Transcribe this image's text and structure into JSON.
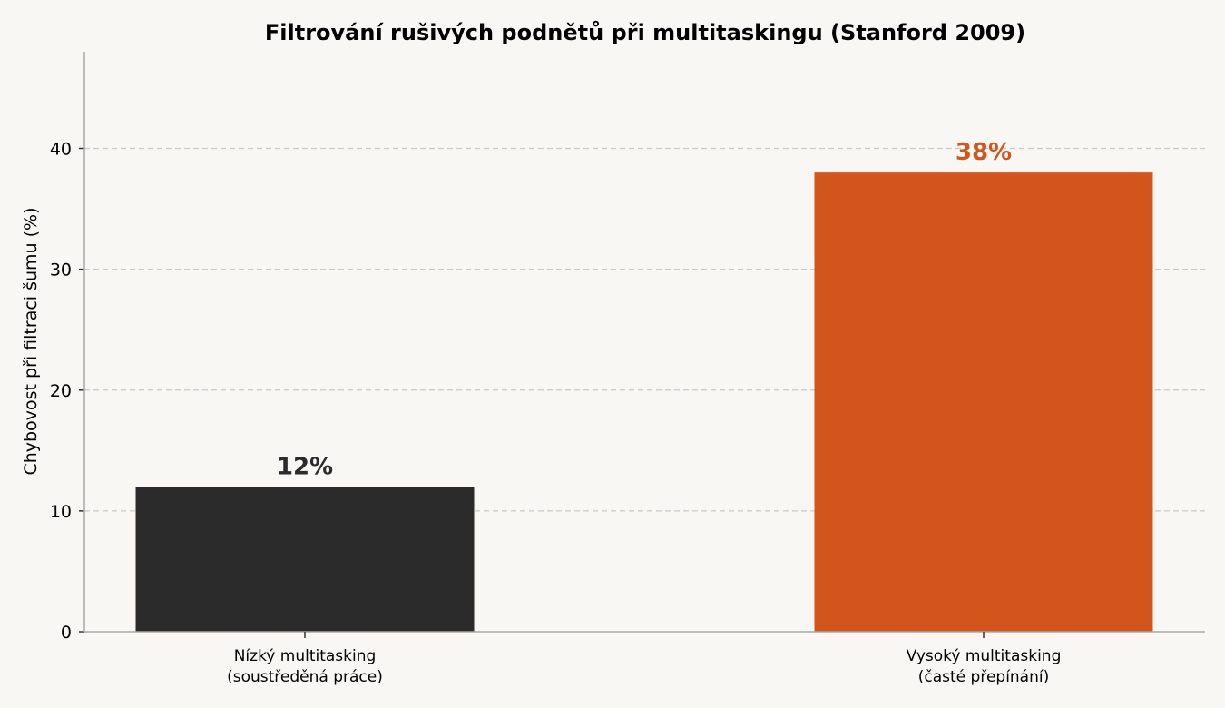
{
  "chart_data": {
    "type": "bar",
    "title": "Filtrování rušivých podnětů při multitaskingu (Stanford 2009)",
    "xlabel": "",
    "ylabel": "Chybovost při filtraci šumu (%)",
    "categories": [
      [
        "Nízký multitasking",
        "(soustředěná práce)"
      ],
      [
        "Vysoký multitasking",
        "(časté přepínání)"
      ]
    ],
    "values": [
      12,
      38
    ],
    "data_labels": [
      "12%",
      "38%"
    ],
    "bar_colors": [
      "#2b2b2b",
      "#d2561c"
    ],
    "label_colors": [
      "#2b2b2b",
      "#d2561c"
    ],
    "yticks": [
      0,
      10,
      20,
      30,
      40
    ],
    "ylim": [
      0,
      48
    ],
    "grid": true
  }
}
